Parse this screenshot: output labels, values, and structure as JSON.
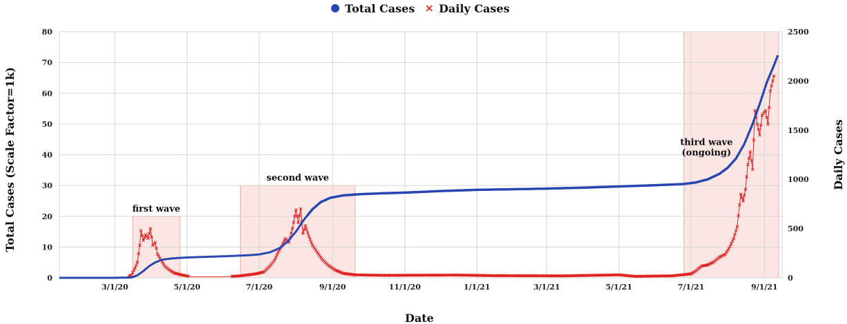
{
  "chart_data": {
    "type": "line",
    "xlabel": "Date",
    "ylabel_left": "Total Cases (Scale Factor=1k)",
    "ylabel_right": "Daily Cases",
    "x_range": [
      "2020-01-14",
      "2021-09-16"
    ],
    "ylim_left": [
      0,
      80
    ],
    "ylim_right": [
      0,
      2500
    ],
    "x_ticks": [
      {
        "date": "2020-03-01",
        "label": "3/1/20"
      },
      {
        "date": "2020-05-01",
        "label": "5/1/20"
      },
      {
        "date": "2020-07-01",
        "label": "7/1/20"
      },
      {
        "date": "2020-09-01",
        "label": "9/1/20"
      },
      {
        "date": "2020-11-01",
        "label": "11/1/20"
      },
      {
        "date": "2021-01-01",
        "label": "1/1/21"
      },
      {
        "date": "2021-03-01",
        "label": "3/1/21"
      },
      {
        "date": "2021-05-01",
        "label": "5/1/21"
      },
      {
        "date": "2021-07-01",
        "label": "7/1/21"
      },
      {
        "date": "2021-09-01",
        "label": "9/1/21"
      }
    ],
    "y_ticks_left": [
      0,
      10,
      20,
      30,
      40,
      50,
      60,
      70,
      80
    ],
    "y_ticks_right": [
      0,
      500,
      1000,
      1500,
      2000,
      2500
    ],
    "grid": true,
    "legend_position": "top-center",
    "series": [
      {
        "name": "Total Cases",
        "axis": "left",
        "marker": "circle",
        "color": "#2846b0",
        "points": [
          [
            "2020-01-14",
            0
          ],
          [
            "2020-03-01",
            0
          ],
          [
            "2020-03-15",
            0.1
          ],
          [
            "2020-03-20",
            0.8
          ],
          [
            "2020-03-25",
            2.2
          ],
          [
            "2020-03-30",
            3.8
          ],
          [
            "2020-04-04",
            5.0
          ],
          [
            "2020-04-10",
            5.9
          ],
          [
            "2020-04-18",
            6.3
          ],
          [
            "2020-04-30",
            6.6
          ],
          [
            "2020-05-15",
            6.8
          ],
          [
            "2020-06-01",
            7.0
          ],
          [
            "2020-06-20",
            7.3
          ],
          [
            "2020-07-01",
            7.6
          ],
          [
            "2020-07-10",
            8.3
          ],
          [
            "2020-07-18",
            9.6
          ],
          [
            "2020-07-25",
            11.8
          ],
          [
            "2020-08-01",
            15.0
          ],
          [
            "2020-08-08",
            19.0
          ],
          [
            "2020-08-15",
            22.3
          ],
          [
            "2020-08-22",
            24.6
          ],
          [
            "2020-08-30",
            26.0
          ],
          [
            "2020-09-10",
            26.8
          ],
          [
            "2020-09-25",
            27.2
          ],
          [
            "2020-10-15",
            27.5
          ],
          [
            "2020-11-01",
            27.7
          ],
          [
            "2020-12-01",
            28.2
          ],
          [
            "2021-01-01",
            28.6
          ],
          [
            "2021-02-01",
            28.8
          ],
          [
            "2021-03-01",
            29.0
          ],
          [
            "2021-04-01",
            29.3
          ],
          [
            "2021-05-01",
            29.7
          ],
          [
            "2021-06-01",
            30.1
          ],
          [
            "2021-06-25",
            30.5
          ],
          [
            "2021-07-05",
            31.0
          ],
          [
            "2021-07-15",
            32.0
          ],
          [
            "2021-07-25",
            33.8
          ],
          [
            "2021-08-01",
            35.8
          ],
          [
            "2021-08-08",
            38.8
          ],
          [
            "2021-08-15",
            43.5
          ],
          [
            "2021-08-22",
            50.0
          ],
          [
            "2021-08-28",
            56.5
          ],
          [
            "2021-09-03",
            63.5
          ],
          [
            "2021-09-09",
            69.0
          ],
          [
            "2021-09-12",
            72.0
          ]
        ]
      },
      {
        "name": "Daily Cases",
        "axis": "right",
        "marker": "x",
        "color": "#e02020",
        "points": [
          [
            "2020-01-14",
            0
          ],
          [
            "2020-03-10",
            2
          ],
          [
            "2020-03-15",
            30
          ],
          [
            "2020-03-18",
            100
          ],
          [
            "2020-03-20",
            160
          ],
          [
            "2020-03-22",
            330
          ],
          [
            "2020-03-23",
            480
          ],
          [
            "2020-03-25",
            380
          ],
          [
            "2020-03-27",
            440
          ],
          [
            "2020-03-29",
            400
          ],
          [
            "2020-03-31",
            500
          ],
          [
            "2020-04-02",
            330
          ],
          [
            "2020-04-04",
            360
          ],
          [
            "2020-04-06",
            240
          ],
          [
            "2020-04-09",
            180
          ],
          [
            "2020-04-12",
            120
          ],
          [
            "2020-04-16",
            80
          ],
          [
            "2020-04-20",
            50
          ],
          [
            "2020-04-26",
            30
          ],
          [
            "2020-05-05",
            10
          ],
          [
            "2020-06-01",
            10
          ],
          [
            "2020-06-15",
            20
          ],
          [
            "2020-06-28",
            40
          ],
          [
            "2020-07-05",
            60
          ],
          [
            "2020-07-10",
            120
          ],
          [
            "2020-07-14",
            180
          ],
          [
            "2020-07-17",
            260
          ],
          [
            "2020-07-20",
            320
          ],
          [
            "2020-07-23",
            400
          ],
          [
            "2020-07-26",
            360
          ],
          [
            "2020-07-29",
            500
          ],
          [
            "2020-08-01",
            690
          ],
          [
            "2020-08-03",
            560
          ],
          [
            "2020-08-05",
            700
          ],
          [
            "2020-08-07",
            450
          ],
          [
            "2020-08-09",
            530
          ],
          [
            "2020-08-12",
            420
          ],
          [
            "2020-08-15",
            330
          ],
          [
            "2020-08-19",
            260
          ],
          [
            "2020-08-23",
            190
          ],
          [
            "2020-08-28",
            130
          ],
          [
            "2020-09-03",
            80
          ],
          [
            "2020-09-10",
            45
          ],
          [
            "2020-09-20",
            30
          ],
          [
            "2020-10-15",
            25
          ],
          [
            "2020-12-15",
            28
          ],
          [
            "2021-01-15",
            22
          ],
          [
            "2021-03-15",
            20
          ],
          [
            "2021-05-01",
            30
          ],
          [
            "2021-05-15",
            15
          ],
          [
            "2021-06-15",
            20
          ],
          [
            "2021-07-01",
            40
          ],
          [
            "2021-07-05",
            70
          ],
          [
            "2021-07-10",
            120
          ],
          [
            "2021-07-15",
            130
          ],
          [
            "2021-07-20",
            160
          ],
          [
            "2021-07-25",
            210
          ],
          [
            "2021-07-30",
            240
          ],
          [
            "2021-08-03",
            320
          ],
          [
            "2021-08-06",
            400
          ],
          [
            "2021-08-09",
            520
          ],
          [
            "2021-08-12",
            850
          ],
          [
            "2021-08-14",
            780
          ],
          [
            "2021-08-16",
            900
          ],
          [
            "2021-08-18",
            1150
          ],
          [
            "2021-08-20",
            1280
          ],
          [
            "2021-08-22",
            1100
          ],
          [
            "2021-08-24",
            1700
          ],
          [
            "2021-08-26",
            1560
          ],
          [
            "2021-08-28",
            1450
          ],
          [
            "2021-08-30",
            1650
          ],
          [
            "2021-09-02",
            1700
          ],
          [
            "2021-09-04",
            1560
          ],
          [
            "2021-09-06",
            1900
          ],
          [
            "2021-09-09",
            2050
          ]
        ]
      }
    ],
    "waves": [
      {
        "label": "first wave",
        "start": "2020-03-16",
        "end": "2020-04-25",
        "top_right": 625
      },
      {
        "label": "second wave",
        "start": "2020-06-15",
        "end": "2020-09-20",
        "top_right": 937
      },
      {
        "label": "third wave",
        "label_line2": "(ongoing)",
        "start": "2021-06-25",
        "end": "2021-09-13",
        "top_right": 2500
      }
    ],
    "legend": [
      {
        "name": "Total Cases",
        "marker": "circle",
        "color": "#2846b0"
      },
      {
        "name": "Daily Cases",
        "marker": "x",
        "color": "#e02020"
      }
    ]
  }
}
